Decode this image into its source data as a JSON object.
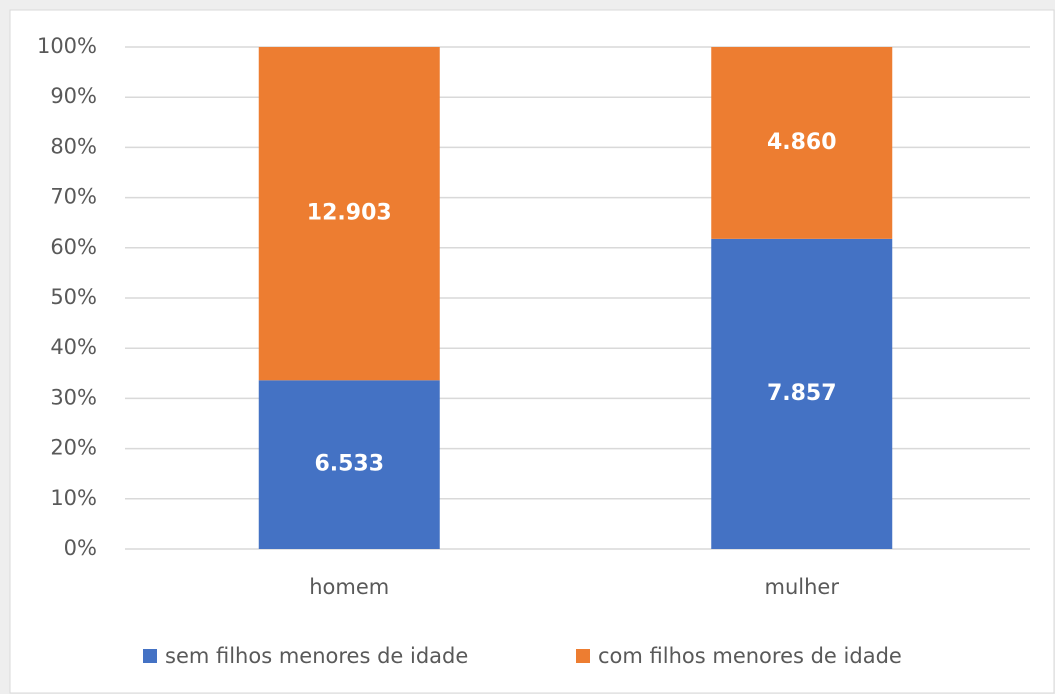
{
  "chart_data": {
    "type": "bar",
    "stacking": "percent",
    "categories": [
      "homem",
      "mulher"
    ],
    "series": [
      {
        "name": "sem filhos menores de idade",
        "color": "#4472c4",
        "values": [
          6533,
          7857
        ],
        "value_labels": [
          "6.533",
          "7.857"
        ]
      },
      {
        "name": "com filhos menores de idade",
        "color": "#ed7d31",
        "values": [
          12903,
          4860
        ],
        "value_labels": [
          "12.903",
          "4.860"
        ]
      }
    ],
    "ylim": [
      0,
      100
    ],
    "yticks": [
      {
        "value": 0,
        "label": "0%"
      },
      {
        "value": 10,
        "label": "10%"
      },
      {
        "value": 20,
        "label": "20%"
      },
      {
        "value": 30,
        "label": "30%"
      },
      {
        "value": 40,
        "label": "40%"
      },
      {
        "value": 50,
        "label": "50%"
      },
      {
        "value": 60,
        "label": "60%"
      },
      {
        "value": 70,
        "label": "70%"
      },
      {
        "value": 80,
        "label": "80%"
      },
      {
        "value": 90,
        "label": "90%"
      },
      {
        "value": 100,
        "label": "100%"
      }
    ],
    "grid": true,
    "legend": "bottom"
  }
}
